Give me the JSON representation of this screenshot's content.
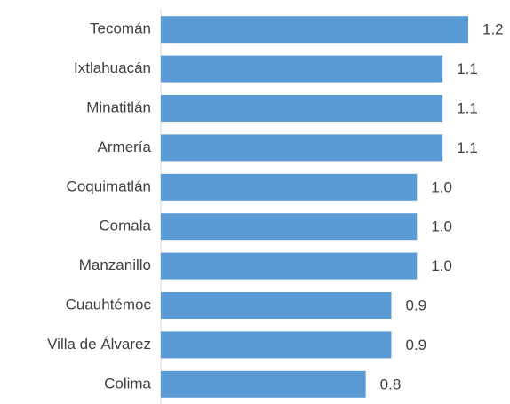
{
  "chart_data": {
    "type": "hbar",
    "categories": [
      "Tecomán",
      "Ixtlahuacán",
      "Minatitlán",
      "Armería",
      "Coquimatlán",
      "Comala",
      "Manzanillo",
      "Cuauhtémoc",
      "Villa de Álvarez",
      "Colima"
    ],
    "values": [
      1.2,
      1.1,
      1.1,
      1.1,
      1.0,
      1.0,
      1.0,
      0.9,
      0.9,
      0.8
    ],
    "value_labels": [
      "1.2",
      "1.1",
      "1.1",
      "1.1",
      "1.0",
      "1.0",
      "1.0",
      "0.9",
      "0.9",
      "0.8"
    ],
    "color": "#5b9bd5",
    "xlim": [
      0,
      1.2
    ]
  }
}
